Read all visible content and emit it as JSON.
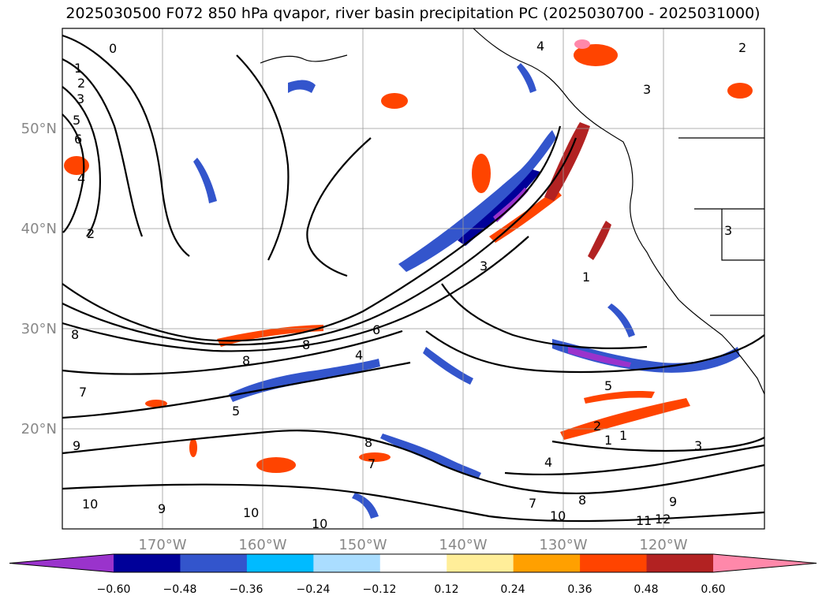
{
  "title": "2025030500 F072 850 hPa qvapor, river basin precipitation PC (2025030700 - 2025031000)",
  "map": {
    "lat_labels": [
      "50°N",
      "40°N",
      "30°N",
      "20°N"
    ],
    "lon_labels": [
      "170°W",
      "160°W",
      "150°W",
      "140°W",
      "130°W",
      "120°W"
    ],
    "contour_labels": [
      "0",
      "1",
      "2",
      "3",
      "5",
      "6",
      "4",
      "2",
      "4",
      "3",
      "8",
      "8",
      "6",
      "4",
      "5",
      "3",
      "1",
      "9",
      "8",
      "7",
      "10",
      "9",
      "10",
      "10",
      "8",
      "7",
      "4",
      "7",
      "10",
      "8",
      "9",
      "11",
      "12",
      "5",
      "2",
      "1",
      "1",
      "3",
      "2",
      "3"
    ]
  },
  "colorbar": {
    "tick_labels": [
      "−0.60",
      "−0.48",
      "−0.36",
      "−0.24",
      "−0.12",
      "0.12",
      "0.24",
      "0.36",
      "0.48",
      "0.60"
    ],
    "colors": [
      "#9a33cc",
      "#000099",
      "#3355cc",
      "#00bbff",
      "#aaddff",
      "#ffffff",
      "#ffee99",
      "#ffa000",
      "#ff4400",
      "#b22222",
      "#ff88aa"
    ]
  }
}
